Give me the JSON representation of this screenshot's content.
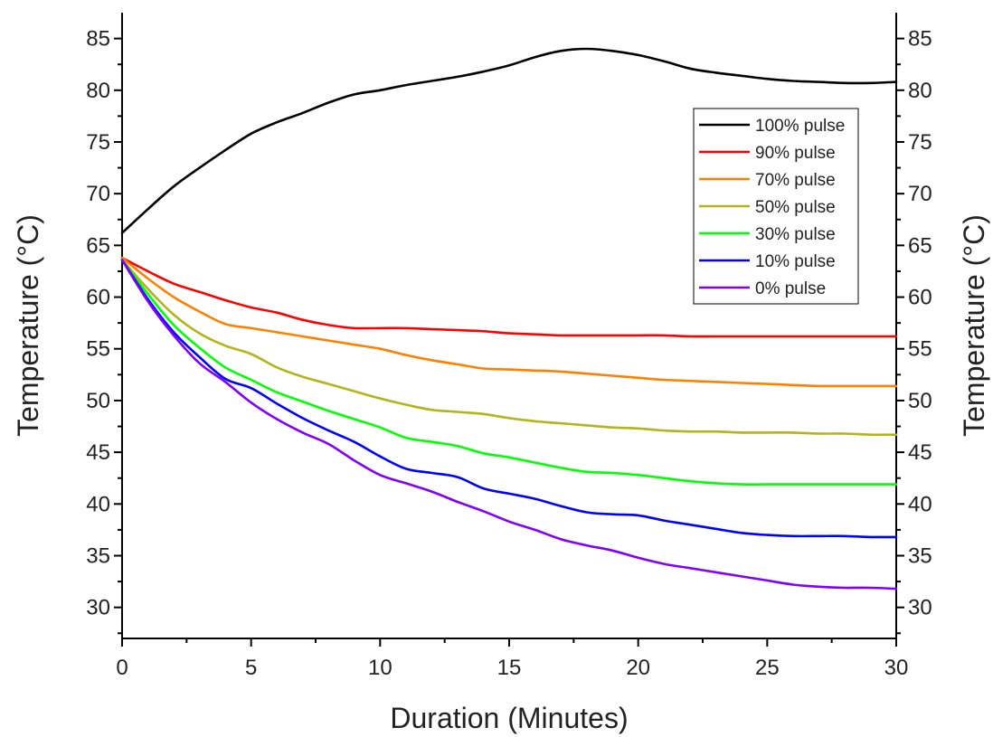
{
  "chart_data": {
    "type": "line",
    "xlabel": "Duration (Minutes)",
    "ylabel": "Temperature (°C)",
    "ylabel_right": "Temperature (°C)",
    "xlim": [
      0,
      30
    ],
    "ylim": [
      27,
      87.5
    ],
    "x_ticks": [
      "0",
      "5",
      "10",
      "15",
      "20",
      "25",
      "30"
    ],
    "y_ticks": [
      "30",
      "35",
      "40",
      "45",
      "50",
      "55",
      "60",
      "65",
      "70",
      "75",
      "80",
      "85"
    ],
    "grid": false,
    "legend_position": "top-right",
    "x": [
      0,
      1,
      2,
      3,
      4,
      5,
      6,
      7,
      8,
      9,
      10,
      11,
      12,
      13,
      14,
      15,
      16,
      17,
      18,
      19,
      20,
      21,
      22,
      23,
      24,
      25,
      26,
      27,
      28,
      29,
      30
    ],
    "series": [
      {
        "name": "100% pulse",
        "color": "#000000",
        "values": [
          66.2,
          68.5,
          70.7,
          72.5,
          74.2,
          75.8,
          76.9,
          77.8,
          78.8,
          79.6,
          80.0,
          80.5,
          80.9,
          81.3,
          81.8,
          82.4,
          83.2,
          83.8,
          84.0,
          83.8,
          83.4,
          82.8,
          82.1,
          81.7,
          81.4,
          81.1,
          80.9,
          80.8,
          80.7,
          80.7,
          80.8
        ]
      },
      {
        "name": "90% pulse",
        "color": "#ff0000",
        "values": [
          63.8,
          62.5,
          61.3,
          60.5,
          59.7,
          59.0,
          58.5,
          57.8,
          57.3,
          57.0,
          57.0,
          57.0,
          56.9,
          56.8,
          56.7,
          56.5,
          56.4,
          56.3,
          56.3,
          56.3,
          56.3,
          56.3,
          56.2,
          56.2,
          56.2,
          56.2,
          56.2,
          56.2,
          56.2,
          56.2,
          56.2
        ]
      },
      {
        "name": "70% pulse",
        "color": "#ff8000",
        "values": [
          63.8,
          61.8,
          60.0,
          58.6,
          57.4,
          57.0,
          56.6,
          56.2,
          55.8,
          55.4,
          55.0,
          54.4,
          53.9,
          53.5,
          53.1,
          53.0,
          52.9,
          52.8,
          52.6,
          52.4,
          52.2,
          52.0,
          51.9,
          51.8,
          51.7,
          51.6,
          51.5,
          51.4,
          51.4,
          51.4,
          51.4
        ]
      },
      {
        "name": "50% pulse",
        "color": "#b3b31a",
        "values": [
          63.6,
          60.8,
          58.3,
          56.5,
          55.3,
          54.5,
          53.2,
          52.3,
          51.6,
          50.9,
          50.2,
          49.6,
          49.1,
          48.9,
          48.7,
          48.3,
          48.0,
          47.8,
          47.6,
          47.4,
          47.3,
          47.1,
          47.0,
          47.0,
          46.9,
          46.9,
          46.9,
          46.8,
          46.8,
          46.7,
          46.7
        ]
      },
      {
        "name": "30% pulse",
        "color": "#00ff00",
        "values": [
          63.6,
          60.3,
          57.3,
          55.1,
          53.2,
          52.0,
          50.8,
          49.9,
          49.0,
          48.2,
          47.4,
          46.4,
          46.0,
          45.6,
          44.9,
          44.5,
          44.0,
          43.5,
          43.1,
          43.0,
          42.8,
          42.5,
          42.2,
          42.0,
          41.9,
          41.9,
          41.9,
          41.9,
          41.9,
          41.9,
          41.9
        ]
      },
      {
        "name": "10% pulse",
        "color": "#0000ff",
        "values": [
          63.6,
          59.8,
          56.6,
          54.2,
          52.1,
          51.2,
          49.7,
          48.3,
          47.1,
          46.0,
          44.6,
          43.4,
          43.0,
          42.6,
          41.5,
          41.0,
          40.5,
          39.8,
          39.2,
          39.0,
          38.9,
          38.4,
          38.0,
          37.6,
          37.2,
          37.0,
          36.9,
          36.9,
          36.9,
          36.8,
          36.8
        ]
      },
      {
        "name": "0% pulse",
        "color": "#8000ff",
        "values": [
          63.6,
          59.6,
          56.3,
          53.6,
          51.8,
          49.8,
          48.2,
          46.9,
          45.8,
          44.2,
          42.8,
          42.0,
          41.2,
          40.2,
          39.3,
          38.3,
          37.5,
          36.6,
          36.0,
          35.5,
          34.8,
          34.2,
          33.8,
          33.4,
          33.0,
          32.6,
          32.2,
          32.0,
          31.9,
          31.9,
          31.8
        ]
      }
    ]
  }
}
